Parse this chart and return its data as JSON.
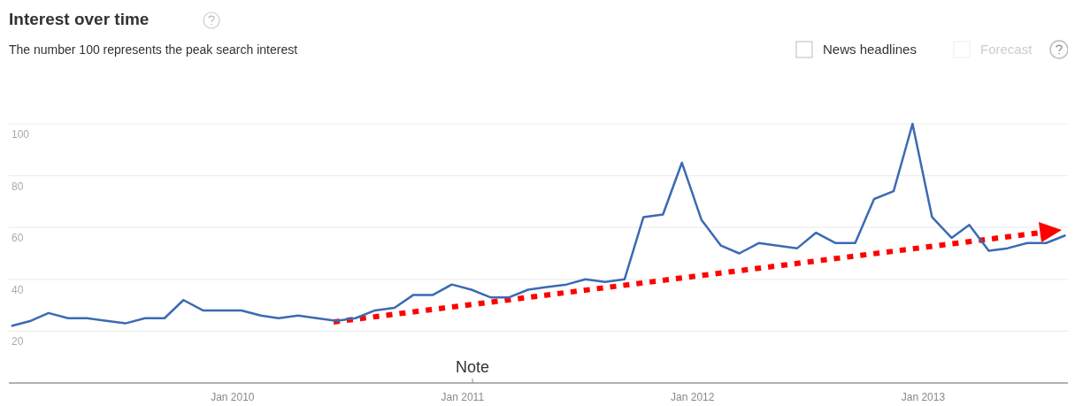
{
  "chart_data": {
    "type": "line",
    "title": "Interest over time",
    "subtitle": "The number 100 represents the peak search interest",
    "x": [
      "2009-01-15",
      "2009-02-15",
      "2009-03-15",
      "2009-04-15",
      "2009-05-15",
      "2009-06-15",
      "2009-07-15",
      "2009-08-15",
      "2009-09-15",
      "2009-10-15",
      "2009-11-15",
      "2009-12-15",
      "2010-01-15",
      "2010-02-15",
      "2010-03-15",
      "2010-04-15",
      "2010-05-15",
      "2010-06-15",
      "2010-07-15",
      "2010-08-15",
      "2010-09-15",
      "2010-10-15",
      "2010-11-15",
      "2010-12-15",
      "2011-01-15",
      "2011-02-15",
      "2011-03-15",
      "2011-04-15",
      "2011-05-15",
      "2011-06-15",
      "2011-07-15",
      "2011-08-15",
      "2011-09-15",
      "2011-10-15",
      "2011-11-15",
      "2011-12-15",
      "2012-01-15",
      "2012-02-15",
      "2012-03-15",
      "2012-04-15",
      "2012-05-15",
      "2012-06-15",
      "2012-07-15",
      "2012-08-15",
      "2012-09-15",
      "2012-10-15",
      "2012-11-15",
      "2012-12-15",
      "2013-01-15",
      "2013-02-15",
      "2013-03-15",
      "2013-04-15",
      "2013-05-15",
      "2013-06-15",
      "2013-07-15",
      "2013-08-15"
    ],
    "series": [
      {
        "color": "#3c6ab4",
        "values": [
          22,
          24,
          27,
          25,
          25,
          24,
          23,
          25,
          25,
          32,
          28,
          28,
          28,
          26,
          25,
          26,
          25,
          24,
          25,
          28,
          29,
          34,
          34,
          38,
          36,
          33,
          33,
          36,
          37,
          38,
          40,
          39,
          40,
          64,
          65,
          85,
          63,
          53,
          50,
          54,
          53,
          52,
          58,
          54,
          54,
          71,
          74,
          100,
          64,
          56,
          61,
          51,
          52,
          54,
          54,
          57
        ]
      }
    ],
    "xlim": [
      "2009-01-11",
      "2013-08-20"
    ],
    "xticks": [
      {
        "value": "2010-01-01",
        "label": "Jan 2010"
      },
      {
        "value": "2011-01-01",
        "label": "Jan 2011"
      },
      {
        "value": "2012-01-01",
        "label": "Jan 2012"
      },
      {
        "value": "2013-01-01",
        "label": "Jan 2013"
      }
    ],
    "ylim": [
      0,
      100
    ],
    "yticks": [
      20,
      40,
      60,
      80,
      100
    ],
    "grid": "y",
    "marker": "none",
    "line_style": "solid",
    "annotations": [
      "News headlines",
      "Forecast",
      "Note"
    ]
  }
}
